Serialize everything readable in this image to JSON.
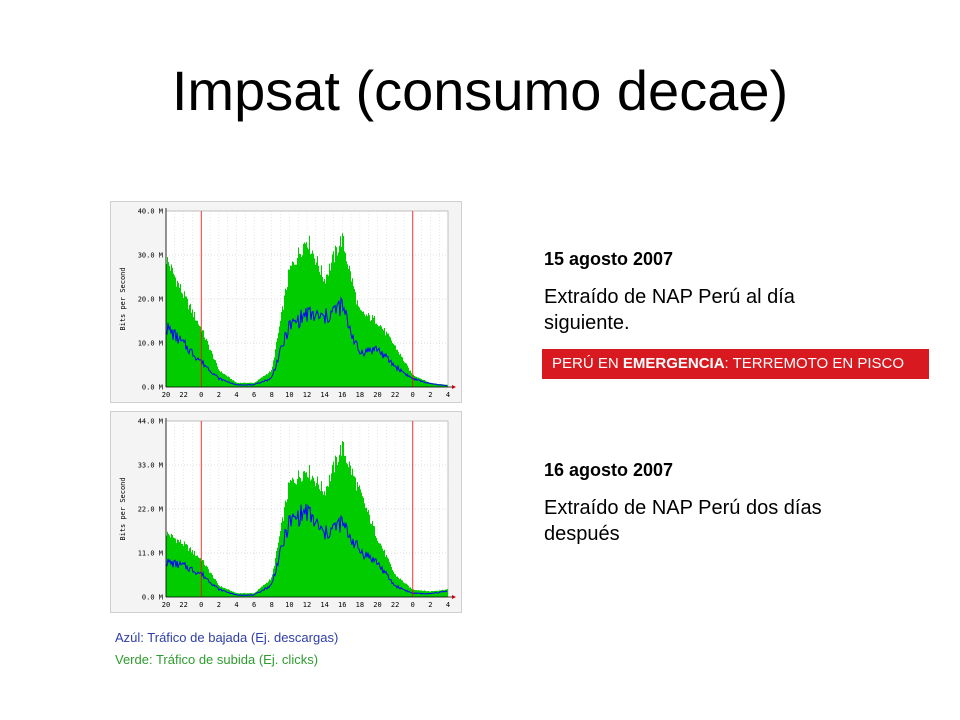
{
  "title": "Impsat (consumo decae)",
  "charts": [
    {
      "date": "15 agosto 2007",
      "description": "Extraído de NAP Perú al día siguiente.",
      "ylabel": "Bits per Second",
      "y_ticks": [
        "40.0 M",
        "30.0 M",
        "20.0 M",
        "10.0 M",
        "0.0 M"
      ],
      "x_ticks": [
        "20",
        "22",
        "0",
        "2",
        "4",
        "6",
        "8",
        "10",
        "12",
        "14",
        "16",
        "18",
        "20",
        "22",
        "0",
        "2",
        "4"
      ]
    },
    {
      "date": "16 agosto 2007",
      "description": "Extraído de NAP Perú dos días después",
      "ylabel": "Bits per Second",
      "y_ticks": [
        "44.0 M",
        "33.0 M",
        "22.0 M",
        "11.0 M",
        "0.0 M"
      ],
      "x_ticks": [
        "20",
        "22",
        "0",
        "2",
        "4",
        "6",
        "8",
        "10",
        "12",
        "14",
        "16",
        "18",
        "20",
        "22",
        "0",
        "2",
        "4"
      ]
    }
  ],
  "banner": {
    "prefix": "PERÚ EN ",
    "bold": "EMERGENCIA",
    "suffix": ": TERREMOTO EN PISCO"
  },
  "legend": {
    "blue": "Azúl: Tráfico de bajada (Ej. descargas)",
    "green": "Verde: Tráfico de subida (Ej. clicks)"
  },
  "colors": {
    "green_fill": "#00cc00",
    "blue_line": "#0000ff",
    "banner_bg": "#d81920",
    "midnight_line": "#ff0000"
  },
  "chart_data": [
    {
      "type": "area",
      "title": "",
      "ylabel": "Bits per Second",
      "unit": "M",
      "ylim": [
        0,
        40
      ],
      "x": [
        "20",
        "22",
        "0",
        "2",
        "4",
        "6",
        "8",
        "10",
        "12",
        "14",
        "16",
        "18",
        "20",
        "22",
        "0",
        "2",
        "4"
      ],
      "series": [
        {
          "name": "",
          "color": "#00cc00",
          "values": [
            31,
            22,
            14,
            4,
            1,
            1,
            4,
            28,
            36,
            26,
            36,
            18,
            16,
            10,
            3,
            1,
            0.5
          ]
        },
        {
          "name": "",
          "color": "#0000ff",
          "values": [
            14,
            10,
            6,
            2,
            0.5,
            0.5,
            2,
            14,
            17,
            16,
            19,
            8,
            9,
            5,
            2,
            0.8,
            0.3
          ]
        }
      ]
    },
    {
      "type": "area",
      "title": "",
      "ylabel": "Bits per Second",
      "unit": "M",
      "ylim": [
        0,
        44
      ],
      "x": [
        "20",
        "22",
        "0",
        "2",
        "4",
        "6",
        "8",
        "10",
        "12",
        "14",
        "16",
        "18",
        "20",
        "22",
        "0",
        "2",
        "4"
      ],
      "series": [
        {
          "name": "",
          "color": "#00cc00",
          "values": [
            17,
            14,
            10,
            3,
            1,
            1,
            5,
            30,
            34,
            28,
            40,
            28,
            16,
            6,
            2,
            1.5,
            2
          ]
        },
        {
          "name": "",
          "color": "#0000ff",
          "values": [
            9,
            8,
            6,
            2,
            0.5,
            0.5,
            3,
            19,
            22,
            16,
            19,
            12,
            9,
            3,
            1,
            0.8,
            1.5
          ]
        }
      ]
    }
  ]
}
